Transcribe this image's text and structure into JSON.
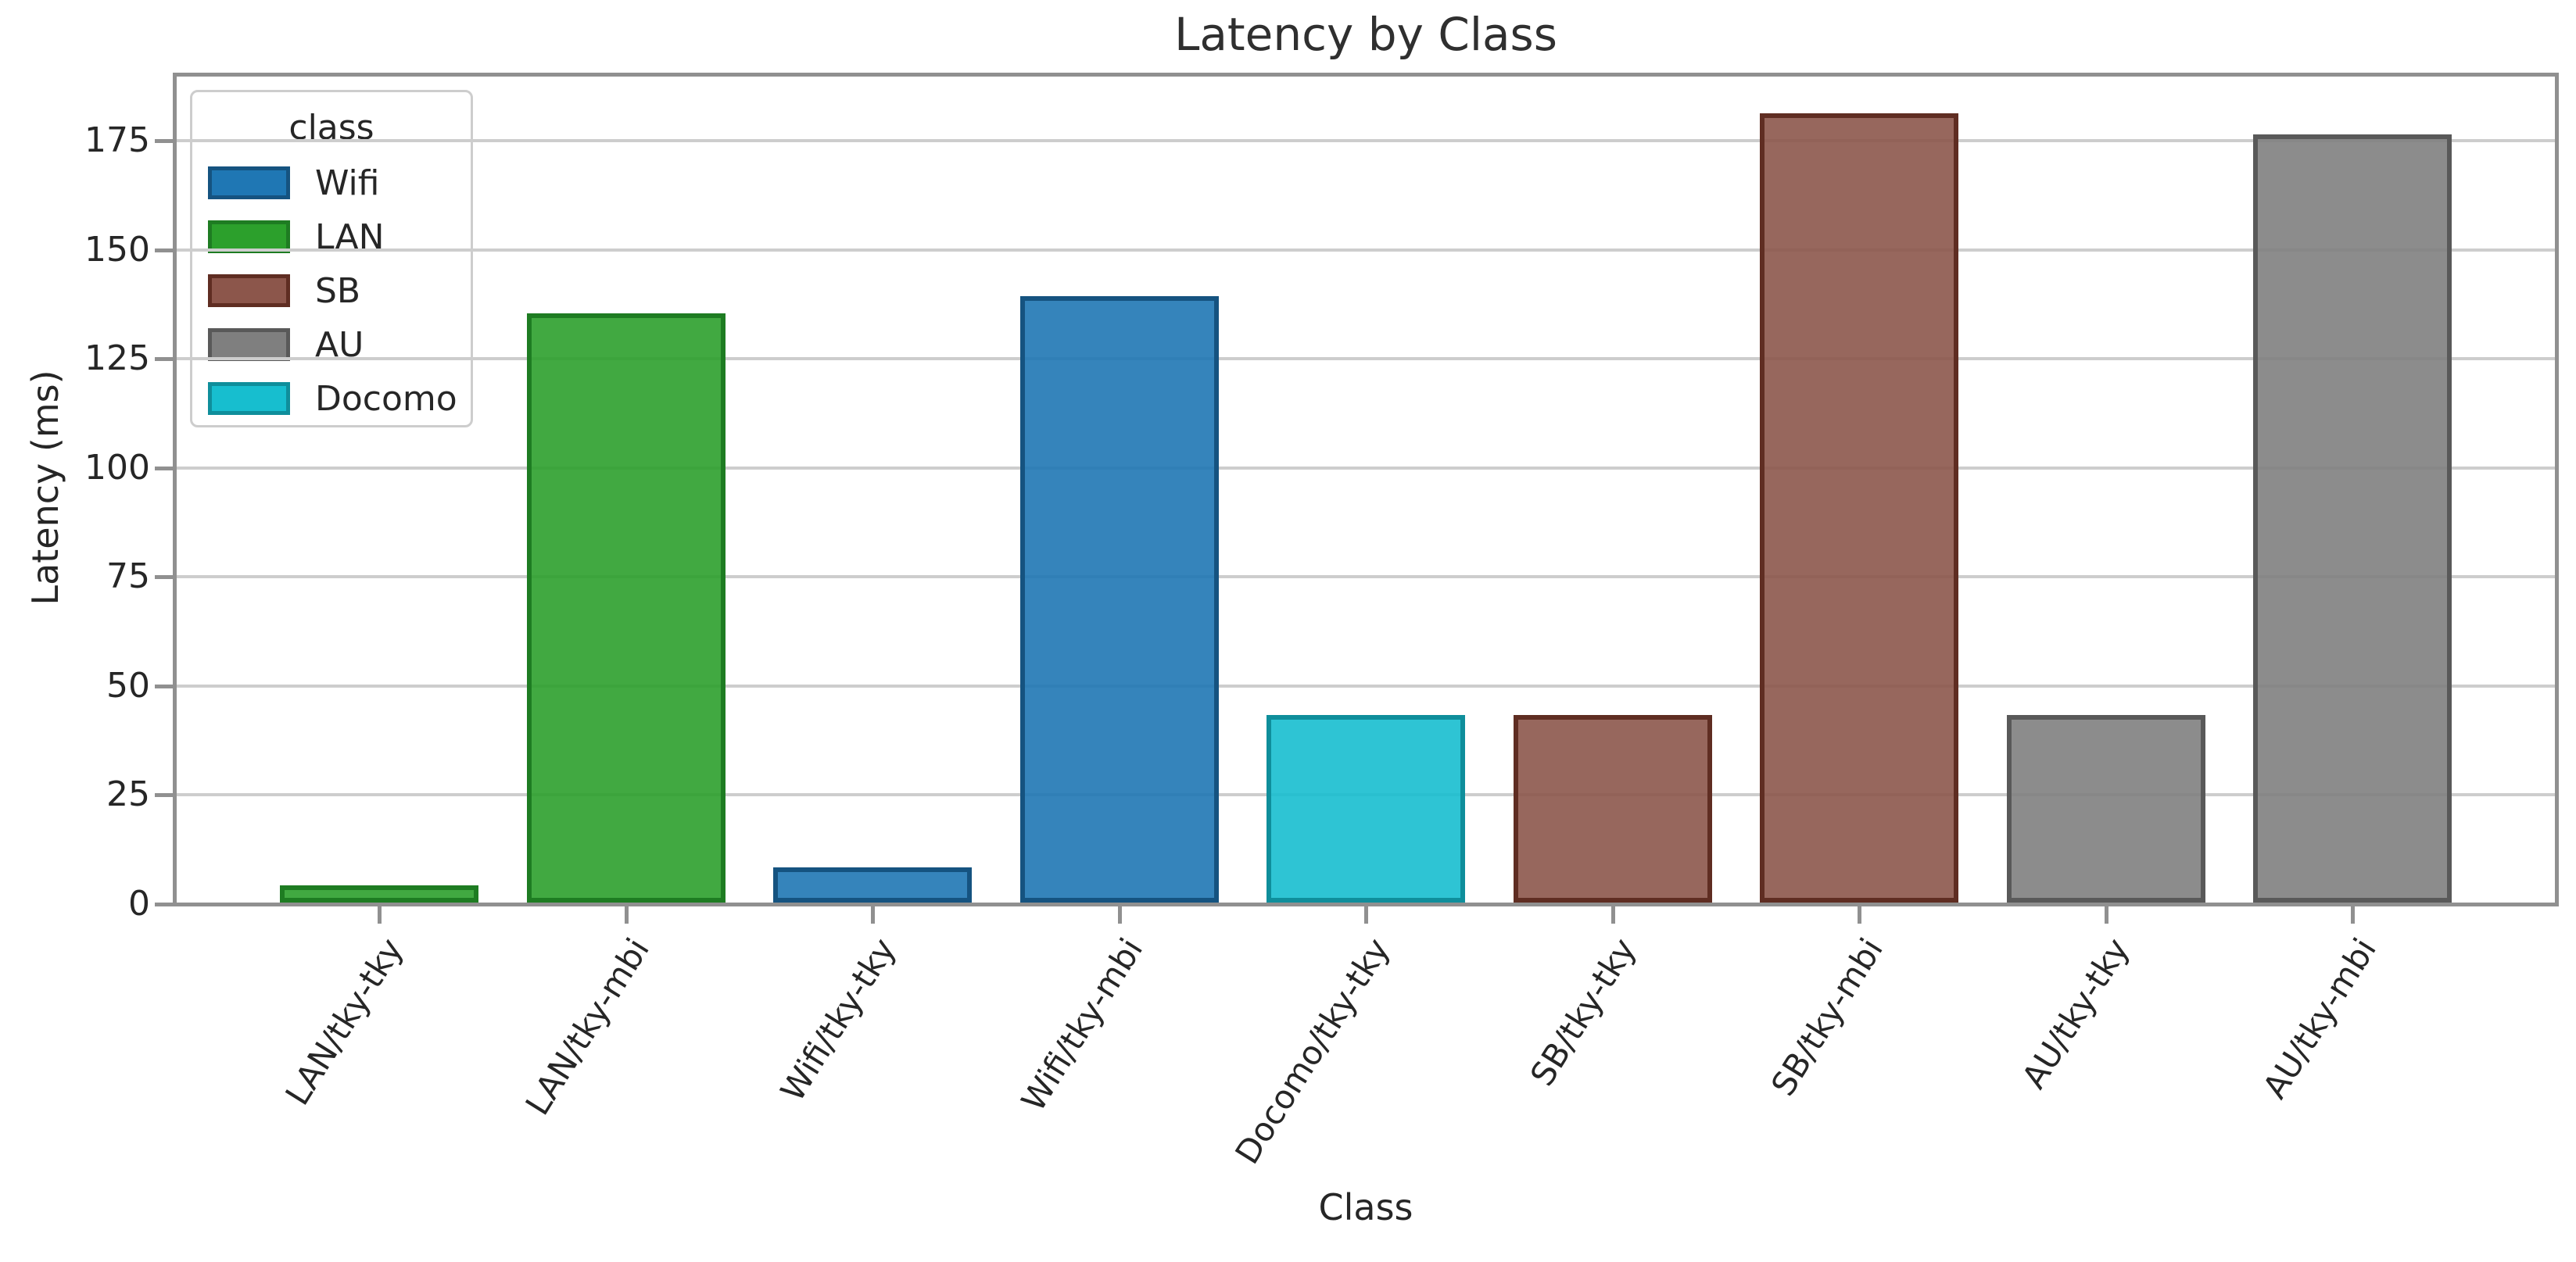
{
  "chart_data": {
    "type": "bar",
    "title": "Latency by Class",
    "xlabel": "Class",
    "ylabel": "Latency (ms)",
    "ylim": [
      0,
      190
    ],
    "yticks": [
      0,
      25,
      50,
      75,
      100,
      125,
      150,
      175
    ],
    "grid": true,
    "legend": {
      "title": "class",
      "position": "upper left",
      "entries": [
        {
          "label": "Wifi",
          "color": "#1f77b4",
          "edge": "#155380"
        },
        {
          "label": "LAN",
          "color": "#2ca02c",
          "edge": "#1e7c22"
        },
        {
          "label": "SB",
          "color": "#8c564b",
          "edge": "#5f2d22"
        },
        {
          "label": "AU",
          "color": "#7f7f7f",
          "edge": "#595959"
        },
        {
          "label": "Docomo",
          "color": "#17becf",
          "edge": "#0f8e9b"
        }
      ]
    },
    "categories": [
      "LAN/tky-tky",
      "LAN/tky-mbi",
      "Wifi/tky-tky",
      "Wifi/tky-mbi",
      "Docomo/tky-tky",
      "SB/tky-tky",
      "SB/tky-mbi",
      "AU/tky-tky",
      "AU/tky-mbi"
    ],
    "values": [
      4,
      135,
      8,
      139,
      43,
      43,
      181,
      43,
      176
    ],
    "bar_classes": [
      "LAN",
      "LAN",
      "Wifi",
      "Wifi",
      "Docomo",
      "SB",
      "SB",
      "AU",
      "AU"
    ]
  }
}
